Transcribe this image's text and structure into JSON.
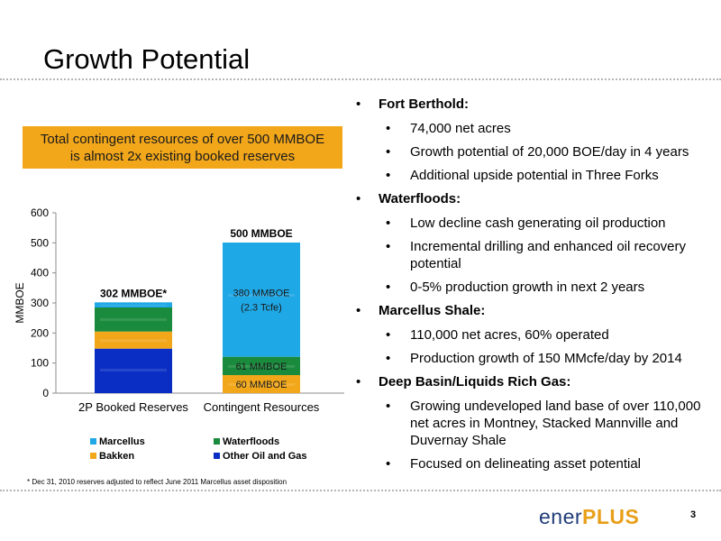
{
  "slide": {
    "title": "Growth Potential",
    "page_number": "3",
    "footnote": "* Dec 31, 2010 reserves adjusted to reflect June 2011 Marcellus asset disposition",
    "callout_line1": "Total contingent resources of over 500 MMBOE",
    "callout_line2": "is almost 2x existing booked reserves",
    "logo_part1": "ener",
    "logo_part2": "PLUS"
  },
  "bullets": [
    {
      "heading": "Fort Berthold:",
      "items": [
        "74,000 net acres",
        "Growth potential of 20,000 BOE/day in 4 years",
        "Additional upside potential in Three Forks"
      ]
    },
    {
      "heading": "Waterfloods:",
      "items": [
        "Low decline cash generating oil production",
        "Incremental drilling and enhanced oil recovery potential",
        "0-5% production growth in next 2 years"
      ]
    },
    {
      "heading": "Marcellus Shale:",
      "items": [
        "110,000 net acres, 60% operated",
        "Production growth of 150 MMcfe/day by 2014"
      ]
    },
    {
      "heading": "Deep Basin/Liquids Rich Gas:",
      "items": [
        "Growing undeveloped land base of over 110,000 net acres in Montney, Stacked Mannville and Duvernay Shale",
        "Focused on delineating asset potential"
      ]
    }
  ],
  "chart_data": {
    "type": "bar",
    "stacked": true,
    "categories": [
      "2P Booked Reserves",
      "Contingent Resources"
    ],
    "ylabel": "MMBOE",
    "ylim": [
      0,
      600
    ],
    "yticks": [
      0,
      100,
      200,
      300,
      400,
      500,
      600
    ],
    "grid": false,
    "legend_position": "bottom",
    "series": [
      {
        "name": "Other Oil and Gas",
        "color": "#0a2ec4",
        "values": [
          148,
          0
        ],
        "labels": [
          "",
          ""
        ]
      },
      {
        "name": "Bakken",
        "color": "#f2a71b",
        "values": [
          57,
          60
        ],
        "labels": [
          "",
          "60 MMBOE"
        ]
      },
      {
        "name": "Waterfloods",
        "color": "#1a8a3c",
        "values": [
          80,
          61
        ],
        "labels": [
          "",
          "61 MMBOE"
        ]
      },
      {
        "name": "Marcellus",
        "color": "#1fa8e6",
        "values": [
          17,
          380
        ],
        "labels": [
          "",
          "380 MMBOE\n(2.3 Tcfe)"
        ]
      }
    ],
    "totals": [
      "302 MMBOE*",
      "500 MMBOE"
    ],
    "legend_order": [
      "Marcellus",
      "Waterfloods",
      "Bakken",
      "Other Oil and Gas"
    ]
  }
}
